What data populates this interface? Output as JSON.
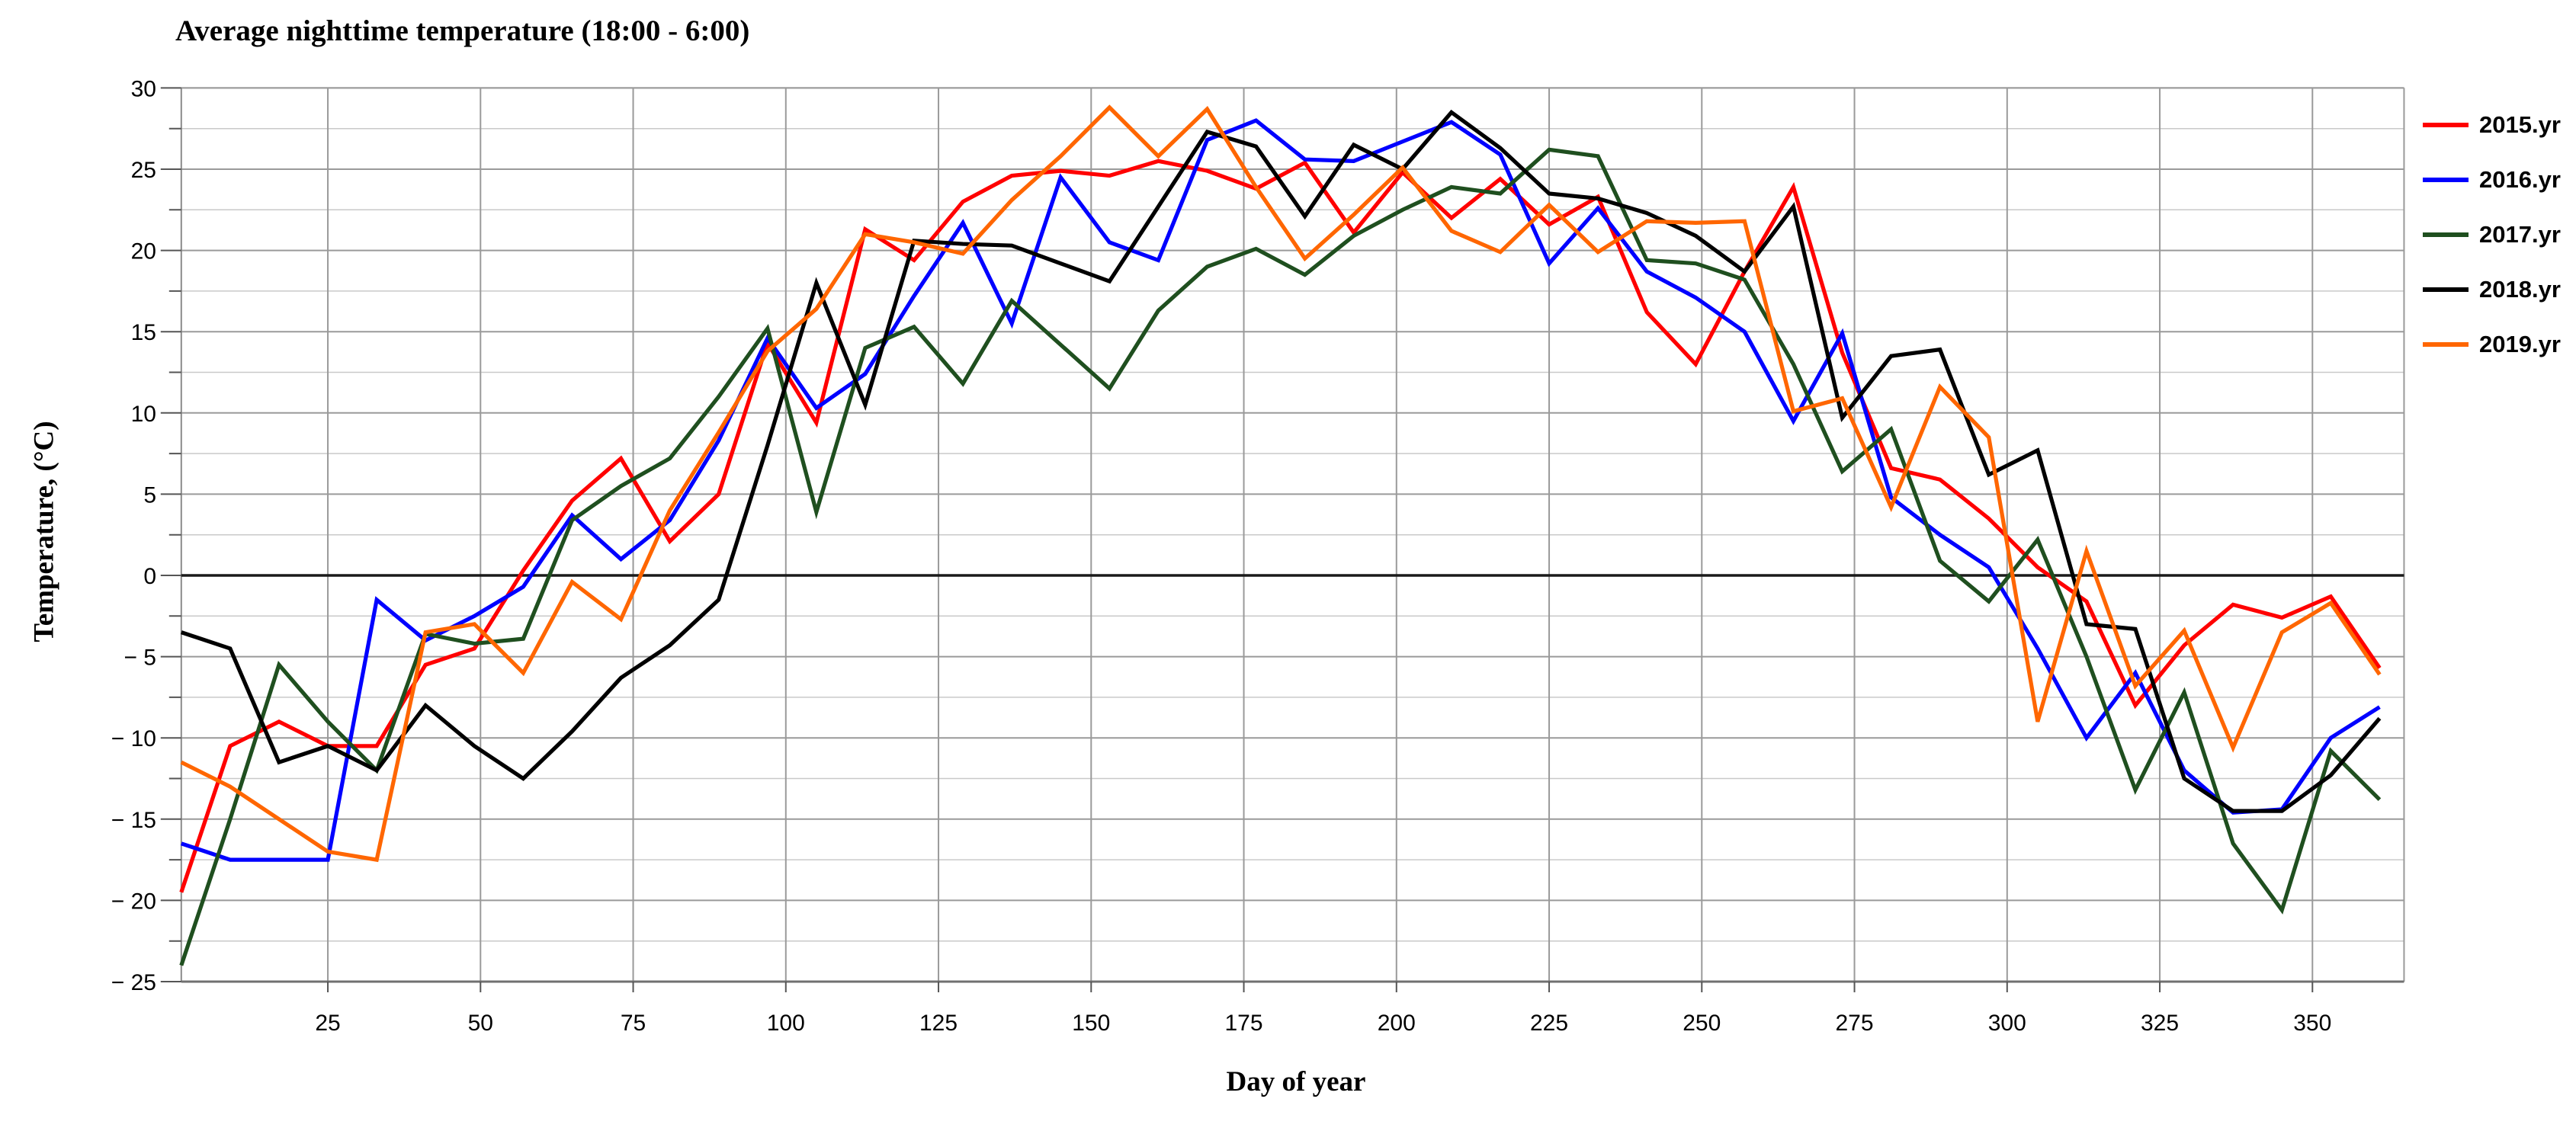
{
  "title": "Average nighttime temperature (18:00 - 6:00)",
  "x_axis": {
    "label": "Day of year",
    "tick_values": [
      25,
      50,
      75,
      100,
      125,
      150,
      175,
      200,
      225,
      250,
      275,
      300,
      325,
      350
    ],
    "min": 1,
    "max": 365
  },
  "y_axis": {
    "label": "Temperature, (°C)",
    "tick_values": [
      30,
      25,
      20,
      15,
      10,
      5,
      0,
      -5,
      -10,
      -15,
      -20,
      -25
    ],
    "tick_labels": [
      "30",
      "25",
      "20",
      "15",
      "10",
      "5",
      "0",
      "− 5",
      "− 10",
      "− 15",
      "− 20",
      "− 25"
    ],
    "minor_step": 2.5,
    "min": -25,
    "max": 30
  },
  "legend": [
    {
      "name": "2015.yr",
      "color": "#ff0000"
    },
    {
      "name": "2016.yr",
      "color": "#0000ff"
    },
    {
      "name": "2017.yr",
      "color": "#1f4f1f"
    },
    {
      "name": "2018.yr",
      "color": "#000000"
    },
    {
      "name": "2019.yr",
      "color": "#ff6600"
    }
  ],
  "chart_data": {
    "type": "line",
    "title": "Average nighttime temperature (18:00 - 6:00)",
    "xlabel": "Day of year",
    "ylabel": "Temperature, (°C)",
    "xlim": [
      1,
      365
    ],
    "ylim": [
      -25,
      30
    ],
    "grid": true,
    "legend_position": "right-top",
    "x": [
      1,
      9,
      17,
      25,
      33,
      41,
      49,
      57,
      65,
      73,
      81,
      89,
      97,
      105,
      113,
      121,
      129,
      137,
      145,
      153,
      161,
      169,
      177,
      185,
      193,
      201,
      209,
      217,
      225,
      233,
      241,
      249,
      257,
      265,
      273,
      281,
      289,
      297,
      305,
      313,
      321,
      329,
      337,
      345,
      353,
      361
    ],
    "series": [
      {
        "name": "2015.yr",
        "color": "#ff0000",
        "values": [
          -19.5,
          -10.5,
          -9.0,
          -10.5,
          -10.5,
          -5.5,
          -4.5,
          0.3,
          4.6,
          7.2,
          2.1,
          5.0,
          14.3,
          9.4,
          21.3,
          19.4,
          23.0,
          24.6,
          24.9,
          24.6,
          25.5,
          24.9,
          23.8,
          25.4,
          21.1,
          24.8,
          22.0,
          24.4,
          21.6,
          23.3,
          16.2,
          13.0,
          18.7,
          23.9,
          13.7,
          6.6,
          5.9,
          3.5,
          0.5,
          -1.6,
          -8.0,
          -4.3,
          -1.8,
          -2.6,
          -1.3,
          -5.7
        ]
      },
      {
        "name": "2016.yr",
        "color": "#0000ff",
        "values": [
          -16.5,
          -17.5,
          -17.5,
          -17.5,
          -1.5,
          -4.0,
          -2.5,
          -0.7,
          3.7,
          1.0,
          3.4,
          8.3,
          14.6,
          10.3,
          12.4,
          17.2,
          21.7,
          15.5,
          24.5,
          20.5,
          19.4,
          26.8,
          28.0,
          25.6,
          25.5,
          26.7,
          27.9,
          25.9,
          19.2,
          22.6,
          18.7,
          17.1,
          15.0,
          9.5,
          14.9,
          4.8,
          2.5,
          0.5,
          -4.5,
          -10.0,
          -6.0,
          -12.0,
          -14.6,
          -14.4,
          -10.0,
          -8.1
        ]
      },
      {
        "name": "2017.yr",
        "color": "#1f4f1f",
        "values": [
          -24.0,
          -15.0,
          -5.5,
          -9.0,
          -12.0,
          -3.6,
          -4.2,
          -3.9,
          3.4,
          5.5,
          7.2,
          11.0,
          15.2,
          3.9,
          14.0,
          15.3,
          11.8,
          16.9,
          14.2,
          11.5,
          16.3,
          19.0,
          20.1,
          18.5,
          20.9,
          22.5,
          23.9,
          23.5,
          26.2,
          25.8,
          19.4,
          19.2,
          18.2,
          13.0,
          6.4,
          9.0,
          0.9,
          -1.6,
          2.2,
          -5.0,
          -13.2,
          -7.2,
          -16.5,
          -20.6,
          -10.8,
          -13.8
        ]
      },
      {
        "name": "2018.yr",
        "color": "#000000",
        "values": [
          -3.5,
          -4.5,
          -11.5,
          -10.5,
          -12.0,
          -8.0,
          -10.5,
          -12.5,
          -9.6,
          -6.3,
          -4.3,
          -1.5,
          8.0,
          18.0,
          10.5,
          20.6,
          20.4,
          20.3,
          19.2,
          18.1,
          22.7,
          27.3,
          26.4,
          22.1,
          26.5,
          25.0,
          28.5,
          26.3,
          23.5,
          23.2,
          22.3,
          20.9,
          18.7,
          22.7,
          9.7,
          13.5,
          13.9,
          6.2,
          7.7,
          -3.0,
          -3.3,
          -12.5,
          -14.5,
          -14.5,
          -12.3,
          -8.8
        ]
      },
      {
        "name": "2019.yr",
        "color": "#ff6600",
        "values": [
          -11.5,
          -13.0,
          -15.0,
          -17.0,
          -17.5,
          -3.5,
          -3.0,
          -6.0,
          -0.4,
          -2.7,
          4.0,
          8.8,
          13.8,
          16.4,
          21.0,
          20.5,
          19.8,
          23.1,
          25.8,
          28.8,
          25.8,
          28.7,
          23.9,
          19.5,
          22.2,
          25.1,
          21.2,
          19.9,
          22.8,
          19.9,
          21.8,
          21.7,
          21.8,
          10.1,
          10.9,
          4.2,
          11.6,
          8.5,
          -9.0,
          1.5,
          -6.8,
          -3.4,
          -10.6,
          -3.5,
          -1.7,
          -6.1
        ]
      }
    ]
  }
}
